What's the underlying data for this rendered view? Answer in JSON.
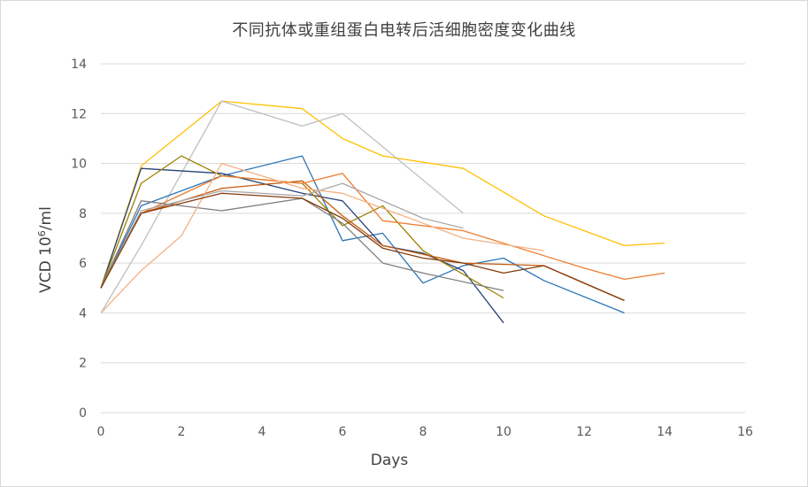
{
  "chart_data": {
    "type": "line",
    "title": "不同抗体或重组蛋白电转后活细胞密度变化曲线",
    "xlabel": "Days",
    "ylabel_main": "VCD 10",
    "ylabel_sup": "6",
    "ylabel_tail": "/ml",
    "xlim": [
      0,
      16
    ],
    "ylim": [
      0,
      14
    ],
    "xticks": [
      "0",
      "2",
      "4",
      "6",
      "8",
      "10",
      "12",
      "14",
      "16"
    ],
    "yticks": [
      "0",
      "2",
      "4",
      "6",
      "8",
      "10",
      "12",
      "14"
    ],
    "grid": "horizontal",
    "legend": "none",
    "series": [
      {
        "color": "#FFC000",
        "points": [
          [
            0,
            5
          ],
          [
            1,
            9.9
          ],
          [
            3,
            12.5
          ],
          [
            5,
            12.2
          ],
          [
            6,
            11
          ],
          [
            7,
            10.3
          ],
          [
            9,
            9.8
          ],
          [
            11,
            7.9
          ],
          [
            13,
            6.7
          ],
          [
            14,
            6.8
          ]
        ]
      },
      {
        "color": "#BFBFBF",
        "points": [
          [
            0,
            4.0
          ],
          [
            1,
            6.7
          ],
          [
            3,
            12.5
          ],
          [
            5,
            11.5
          ],
          [
            6,
            12
          ],
          [
            9,
            8.0
          ]
        ]
      },
      {
        "color": "#2E75B6",
        "points": [
          [
            0,
            5
          ],
          [
            1,
            8.3
          ],
          [
            3,
            9.5
          ],
          [
            5,
            10.3
          ],
          [
            6,
            6.9
          ],
          [
            7,
            7.2
          ],
          [
            8,
            5.2
          ],
          [
            9,
            5.9
          ],
          [
            10,
            6.2
          ],
          [
            11,
            5.3
          ],
          [
            13,
            4.0
          ]
        ]
      },
      {
        "color": "#264478",
        "points": [
          [
            0,
            5
          ],
          [
            1,
            9.8
          ],
          [
            3,
            9.6
          ],
          [
            5,
            8.8
          ],
          [
            6,
            8.5
          ],
          [
            7,
            6.7
          ],
          [
            8,
            6.4
          ],
          [
            9,
            5.7
          ],
          [
            10,
            3.6
          ]
        ]
      },
      {
        "color": "#9E7F00",
        "points": [
          [
            0,
            5
          ],
          [
            1,
            9.2
          ],
          [
            2,
            10.3
          ],
          [
            3,
            9.5
          ],
          [
            5,
            9.2
          ],
          [
            6,
            7.5
          ],
          [
            7,
            8.3
          ],
          [
            8,
            6.5
          ],
          [
            10,
            4.6
          ]
        ]
      },
      {
        "color": "#C55A11",
        "points": [
          [
            0,
            5
          ],
          [
            1,
            8.0
          ],
          [
            3,
            9.0
          ],
          [
            5,
            9.3
          ],
          [
            6,
            7.9
          ],
          [
            7,
            6.7
          ],
          [
            9,
            6.0
          ],
          [
            11,
            5.9
          ],
          [
            13,
            4.5
          ]
        ]
      },
      {
        "color": "#ED7D31",
        "points": [
          [
            0,
            5
          ],
          [
            1,
            8.0
          ],
          [
            3,
            9.5
          ],
          [
            5,
            9.2
          ],
          [
            6,
            9.6
          ],
          [
            7,
            7.7
          ],
          [
            9,
            7.3
          ],
          [
            12,
            5.8
          ],
          [
            13,
            5.35
          ],
          [
            14,
            5.6
          ]
        ]
      },
      {
        "color": "#7F7F7F",
        "points": [
          [
            0,
            5
          ],
          [
            1,
            8.5
          ],
          [
            3,
            8.1
          ],
          [
            5,
            8.6
          ],
          [
            6,
            7.6
          ],
          [
            7,
            6.0
          ],
          [
            8,
            5.6
          ],
          [
            10,
            4.9
          ]
        ]
      },
      {
        "color": "#A9A9A9",
        "points": [
          [
            0,
            5
          ],
          [
            1,
            8.1
          ],
          [
            3,
            8.9
          ],
          [
            5,
            8.7
          ],
          [
            6,
            9.2
          ],
          [
            8,
            7.8
          ],
          [
            9,
            7.4
          ]
        ]
      },
      {
        "color": "#F4B183",
        "points": [
          [
            0,
            4.0
          ],
          [
            1,
            5.7
          ],
          [
            2,
            7.1
          ],
          [
            3,
            10.0
          ],
          [
            5,
            9.0
          ],
          [
            6,
            8.8
          ],
          [
            9,
            7.0
          ],
          [
            11,
            6.5
          ]
        ]
      },
      {
        "color": "#843C0C",
        "points": [
          [
            0,
            5
          ],
          [
            1,
            8.0
          ],
          [
            3,
            8.8
          ],
          [
            5,
            8.6
          ],
          [
            6,
            7.8
          ],
          [
            7,
            6.6
          ],
          [
            8,
            6.2
          ],
          [
            9,
            6.0
          ],
          [
            10,
            5.6
          ],
          [
            11,
            5.9
          ],
          [
            13,
            4.5
          ]
        ]
      }
    ]
  }
}
